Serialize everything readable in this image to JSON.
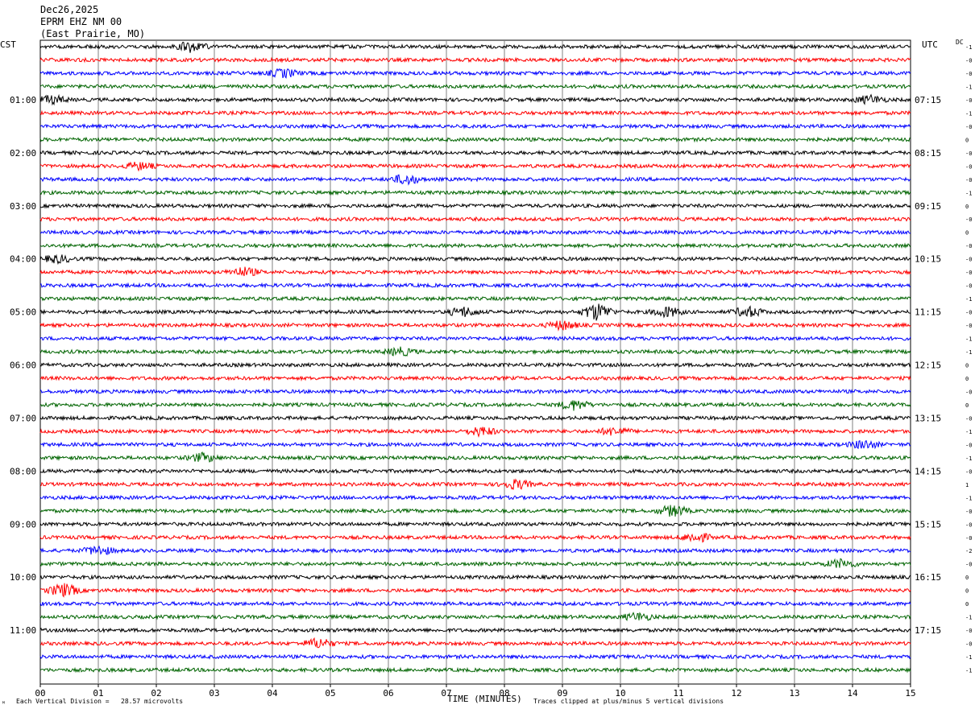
{
  "header": {
    "date": "Dec26,2025",
    "station": "EPRM EHZ NM 00",
    "location": "(East Prairie, MO)"
  },
  "left_zone_label": "CST",
  "right_zone_label": "UTC",
  "dc_label": "DC",
  "footer": {
    "scale_note": "Each Vertical Division =   28.57 microvolts",
    "clip_note": "Traces clipped at plus/minus 5 vertical divisions",
    "mark": "ᴹ"
  },
  "colors": {
    "cycle": [
      "#000000",
      "#ff0000",
      "#0000ff",
      "#006400"
    ],
    "grid": "#808080"
  },
  "chart_data": {
    "type": "line",
    "title": "EPRM EHZ NM 00 (East Prairie, MO) Dec26,2025",
    "xlabel": "TIME (MINUTES)",
    "xlim": [
      0,
      15
    ],
    "x_tick_labels": [
      "00",
      "01",
      "02",
      "03",
      "04",
      "05",
      "06",
      "07",
      "08",
      "09",
      "10",
      "11",
      "12",
      "13",
      "14",
      "15"
    ],
    "left_time_labels": [
      "01:00",
      "02:00",
      "03:00",
      "04:00",
      "05:00",
      "06:00",
      "07:00",
      "08:00",
      "09:00",
      "10:00",
      "11:00"
    ],
    "right_time_labels": [
      "07:15",
      "08:15",
      "09:15",
      "10:15",
      "11:15",
      "12:15",
      "13:15",
      "14:15",
      "15:15",
      "16:15",
      "17:15"
    ],
    "hour_label_every_n_traces": 4,
    "hour_label_first_trace_index": 4,
    "trace_count": 48,
    "trace_dc_offsets": [
      "-1",
      "-0",
      "-0",
      "-1",
      "-0",
      "-1",
      "-0",
      "0",
      "-0",
      "-0",
      "-0",
      "-1",
      "0",
      "-0",
      "0",
      "-0",
      "-0",
      "-0",
      "-0",
      "-1",
      "-0",
      "-0",
      "-1",
      "-1",
      "0",
      "0",
      "-0",
      "0",
      "-0",
      "-1",
      "-0",
      "-1",
      "-0",
      "1",
      "-1",
      "-0",
      "-0",
      "-0",
      "-2",
      "-0",
      "0",
      "0",
      "0",
      "-1",
      "-0",
      "-0",
      "-1",
      "-1"
    ],
    "scale_microvolts_per_division": 28.57,
    "clip_divisions": 5,
    "events": [
      {
        "trace": 0,
        "minute": 2.6,
        "strength": 1.8
      },
      {
        "trace": 1,
        "minute": 7.2,
        "strength": 0.0
      },
      {
        "trace": 2,
        "minute": 4.2,
        "strength": 1.5
      },
      {
        "trace": 4,
        "minute": 0.2,
        "strength": 1.4
      },
      {
        "trace": 4,
        "minute": 14.3,
        "strength": 1.5
      },
      {
        "trace": 9,
        "minute": 1.7,
        "strength": 1.3
      },
      {
        "trace": 10,
        "minute": 6.3,
        "strength": 1.8
      },
      {
        "trace": 16,
        "minute": 0.3,
        "strength": 1.3
      },
      {
        "trace": 17,
        "minute": 3.5,
        "strength": 1.6
      },
      {
        "trace": 20,
        "minute": 7.3,
        "strength": 1.7
      },
      {
        "trace": 20,
        "minute": 9.6,
        "strength": 3.2
      },
      {
        "trace": 20,
        "minute": 10.8,
        "strength": 1.8
      },
      {
        "trace": 20,
        "minute": 12.2,
        "strength": 1.8
      },
      {
        "trace": 21,
        "minute": 9.0,
        "strength": 1.6
      },
      {
        "trace": 23,
        "minute": 6.2,
        "strength": 1.4
      },
      {
        "trace": 27,
        "minute": 9.2,
        "strength": 1.8
      },
      {
        "trace": 29,
        "minute": 7.6,
        "strength": 1.6
      },
      {
        "trace": 29,
        "minute": 9.9,
        "strength": 1.4
      },
      {
        "trace": 30,
        "minute": 14.2,
        "strength": 1.5
      },
      {
        "trace": 31,
        "minute": 2.8,
        "strength": 1.5
      },
      {
        "trace": 33,
        "minute": 8.2,
        "strength": 1.7
      },
      {
        "trace": 35,
        "minute": 10.9,
        "strength": 2.0
      },
      {
        "trace": 37,
        "minute": 11.3,
        "strength": 1.7
      },
      {
        "trace": 38,
        "minute": 1.0,
        "strength": 1.6
      },
      {
        "trace": 39,
        "minute": 13.8,
        "strength": 1.6
      },
      {
        "trace": 41,
        "minute": 0.4,
        "strength": 2.4
      },
      {
        "trace": 43,
        "minute": 10.3,
        "strength": 1.4
      },
      {
        "trace": 45,
        "minute": 4.8,
        "strength": 1.8
      }
    ]
  }
}
